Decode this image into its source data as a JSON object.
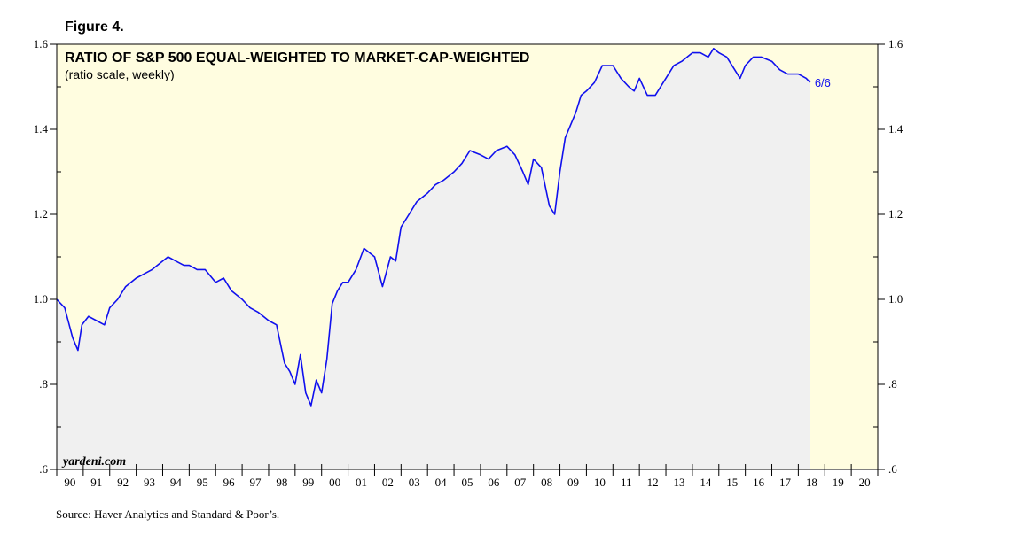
{
  "figure_label": "Figure 4.",
  "source": "Source: Haver Analytics and Standard & Poor’s.",
  "colors": {
    "background": "#fffde0",
    "area_fill": "#f0f0f0",
    "line": "#1010ee",
    "axis": "#000000"
  },
  "chart_data": {
    "type": "line",
    "title": "RATIO OF S&P 500 EQUAL-WEIGHTED TO MARKET-CAP-WEIGHTED",
    "subtitle": "(ratio scale, weekly)",
    "watermark": "yardeni.com",
    "end_label": "6/6",
    "x_start_year": 1990,
    "x_end_year": 2021,
    "x_tick_labels": [
      "90",
      "91",
      "92",
      "93",
      "94",
      "95",
      "96",
      "97",
      "98",
      "99",
      "00",
      "01",
      "02",
      "03",
      "04",
      "05",
      "06",
      "07",
      "08",
      "09",
      "10",
      "11",
      "12",
      "13",
      "14",
      "15",
      "16",
      "17",
      "18",
      "19",
      "20"
    ],
    "y_tick_labels": [
      "1.6",
      "1.4",
      "1.2",
      "1.0",
      ".8",
      ".6"
    ],
    "y_ticks": [
      1.6,
      1.4,
      1.2,
      1.0,
      0.8,
      0.6
    ],
    "ylim": [
      0.6,
      1.6
    ],
    "y_scale": "ratio",
    "grid": false,
    "series": [
      {
        "x": [
          1990.0,
          1990.3,
          1990.6,
          1990.8,
          1990.95,
          1991.2,
          1991.5,
          1991.8,
          1992.0,
          1992.3,
          1992.6,
          1993.0,
          1993.3,
          1993.6,
          1994.0,
          1994.2,
          1994.5,
          1994.8,
          1995.0,
          1995.3,
          1995.6,
          1996.0,
          1996.3,
          1996.6,
          1997.0,
          1997.3,
          1997.6,
          1998.0,
          1998.3,
          1998.6,
          1998.8,
          1999.0,
          1999.2,
          1999.4,
          1999.6,
          1999.8,
          2000.0,
          2000.2,
          2000.4,
          2000.6,
          2000.8,
          2001.0,
          2001.3,
          2001.6,
          2002.0,
          2002.3,
          2002.6,
          2002.8,
          2003.0,
          2003.3,
          2003.6,
          2004.0,
          2004.3,
          2004.6,
          2005.0,
          2005.3,
          2005.6,
          2006.0,
          2006.3,
          2006.6,
          2007.0,
          2007.3,
          2007.6,
          2007.8,
          2008.0,
          2008.3,
          2008.6,
          2008.8,
          2009.0,
          2009.2,
          2009.4,
          2009.6,
          2009.8,
          2010.0,
          2010.3,
          2010.6,
          2011.0,
          2011.3,
          2011.6,
          2011.8,
          2012.0,
          2012.3,
          2012.6,
          2013.0,
          2013.3,
          2013.6,
          2014.0,
          2014.3,
          2014.6,
          2014.8,
          2015.0,
          2015.3,
          2015.6,
          2015.8,
          2016.0,
          2016.3,
          2016.6,
          2017.0,
          2017.3,
          2017.6,
          2018.0,
          2018.3,
          2018.45
        ],
        "values": [
          1.0,
          0.98,
          0.91,
          0.88,
          0.94,
          0.96,
          0.95,
          0.94,
          0.98,
          1.0,
          1.03,
          1.05,
          1.06,
          1.07,
          1.09,
          1.1,
          1.09,
          1.08,
          1.08,
          1.07,
          1.07,
          1.04,
          1.05,
          1.02,
          1.0,
          0.98,
          0.97,
          0.95,
          0.94,
          0.85,
          0.83,
          0.8,
          0.87,
          0.78,
          0.75,
          0.81,
          0.78,
          0.86,
          0.99,
          1.02,
          1.04,
          1.04,
          1.07,
          1.12,
          1.1,
          1.03,
          1.1,
          1.09,
          1.17,
          1.2,
          1.23,
          1.25,
          1.27,
          1.28,
          1.3,
          1.32,
          1.35,
          1.34,
          1.33,
          1.35,
          1.36,
          1.34,
          1.3,
          1.27,
          1.33,
          1.31,
          1.22,
          1.2,
          1.3,
          1.38,
          1.41,
          1.44,
          1.48,
          1.49,
          1.51,
          1.55,
          1.55,
          1.52,
          1.5,
          1.49,
          1.52,
          1.48,
          1.48,
          1.52,
          1.55,
          1.56,
          1.58,
          1.58,
          1.57,
          1.59,
          1.58,
          1.57,
          1.54,
          1.52,
          1.55,
          1.57,
          1.57,
          1.56,
          1.54,
          1.53,
          1.53,
          1.52,
          1.51
        ]
      }
    ]
  }
}
